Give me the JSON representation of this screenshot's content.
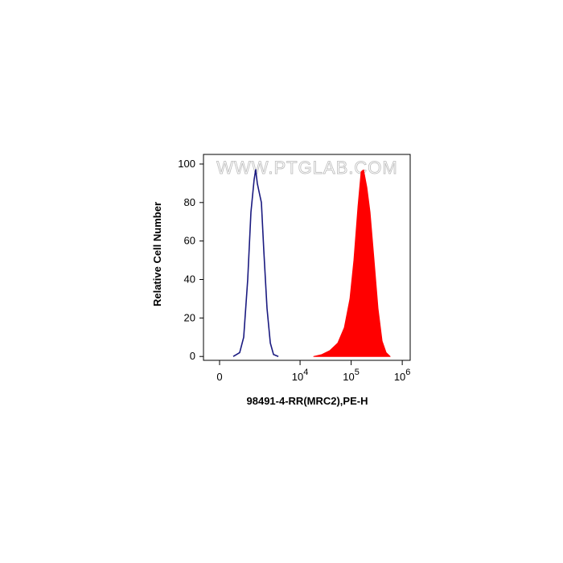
{
  "chart_data": {
    "type": "area",
    "watermark": "WWW.PTGLAB.COM",
    "x_label": "98491-4-RR(MRC2),PE-H",
    "y_label": "Relative Cell Number",
    "xscale": "logicle",
    "xlim": [
      -420,
      1430000
    ],
    "xticks": [
      {
        "value": 0,
        "label": "0"
      },
      {
        "value": 10000,
        "label": "10",
        "exponent": "4"
      },
      {
        "value": 100000,
        "label": "10",
        "exponent": "5"
      },
      {
        "value": 1000000,
        "label": "10",
        "exponent": "6"
      }
    ],
    "ylim": [
      -2,
      105
    ],
    "yticks": [
      0,
      20,
      40,
      60,
      80,
      100
    ],
    "series": [
      {
        "color": "#1a1a80",
        "fill": false,
        "x": [
          350,
          550,
          700,
          870,
          1030,
          1210,
          1300,
          1410,
          1520,
          1710,
          1920,
          2230,
          2590,
          3000,
          3740
        ],
        "y": [
          0,
          2,
          10,
          40,
          75,
          92,
          97,
          90,
          86,
          80,
          55,
          25,
          7,
          1,
          0
        ]
      },
      {
        "color": "#ff0000",
        "fill": true,
        "x": [
          18500,
          26600,
          38200,
          54800,
          73400,
          94700,
          113000,
          136000,
          157000,
          175000,
          203000,
          234000,
          281000,
          336000,
          403000,
          484000,
          581000
        ],
        "y": [
          0,
          1,
          3,
          7,
          15,
          30,
          50,
          78,
          96,
          97,
          88,
          75,
          50,
          25,
          8,
          2,
          0
        ]
      }
    ]
  }
}
